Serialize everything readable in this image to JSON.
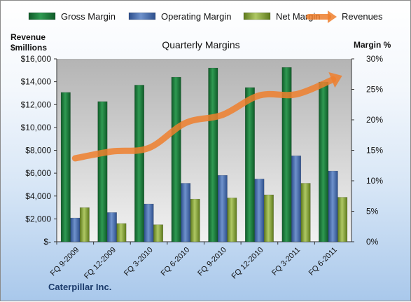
{
  "company": "Caterpillar Inc.",
  "chart_data": {
    "type": "bar",
    "title": "Quarterly Margins",
    "ylabel_left": [
      "Revenue",
      "$millions"
    ],
    "ylabel_right": "Margin %",
    "categories": [
      "FQ 9-2009",
      "FQ 12-2009",
      "FQ 3-2010",
      "FQ 6-2010",
      "FQ 9-2010",
      "FQ 12-2010",
      "FQ 3-2011",
      "FQ 6-2011"
    ],
    "left_axis": {
      "min": 0,
      "max": 16000,
      "step": 2000,
      "tick_labels": [
        "$-",
        "$2,000",
        "$4,000",
        "$6,000",
        "$8,000",
        "$10,000",
        "$12,000",
        "$14,000",
        "$16,000"
      ]
    },
    "right_axis": {
      "min": 0,
      "max": 30,
      "step": 5,
      "tick_labels": [
        "0%",
        "5%",
        "10%",
        "15%",
        "20%",
        "25%",
        "30%"
      ]
    },
    "series": [
      {
        "name": "Gross Margin",
        "axis": "right",
        "kind": "bar",
        "color": "#1e7d3e",
        "values": [
          24.5,
          23.0,
          25.7,
          27.0,
          28.5,
          25.3,
          28.6,
          26.2
        ]
      },
      {
        "name": "Operating Margin",
        "axis": "right",
        "kind": "bar",
        "color": "#4a6fae",
        "values": [
          3.9,
          4.8,
          6.2,
          9.6,
          10.9,
          10.3,
          14.1,
          11.6
        ]
      },
      {
        "name": "Net Margin",
        "axis": "right",
        "kind": "bar",
        "color": "#8caa3c",
        "values": [
          5.6,
          3.0,
          2.8,
          7.0,
          7.2,
          7.7,
          9.6,
          7.3
        ]
      },
      {
        "name": "Revenues",
        "axis": "left",
        "kind": "line",
        "color": "#ee7f2d",
        "values": [
          7300,
          7900,
          8200,
          10400,
          11100,
          12800,
          12900,
          14200
        ]
      }
    ],
    "legend_position": "top",
    "grid": false
  }
}
